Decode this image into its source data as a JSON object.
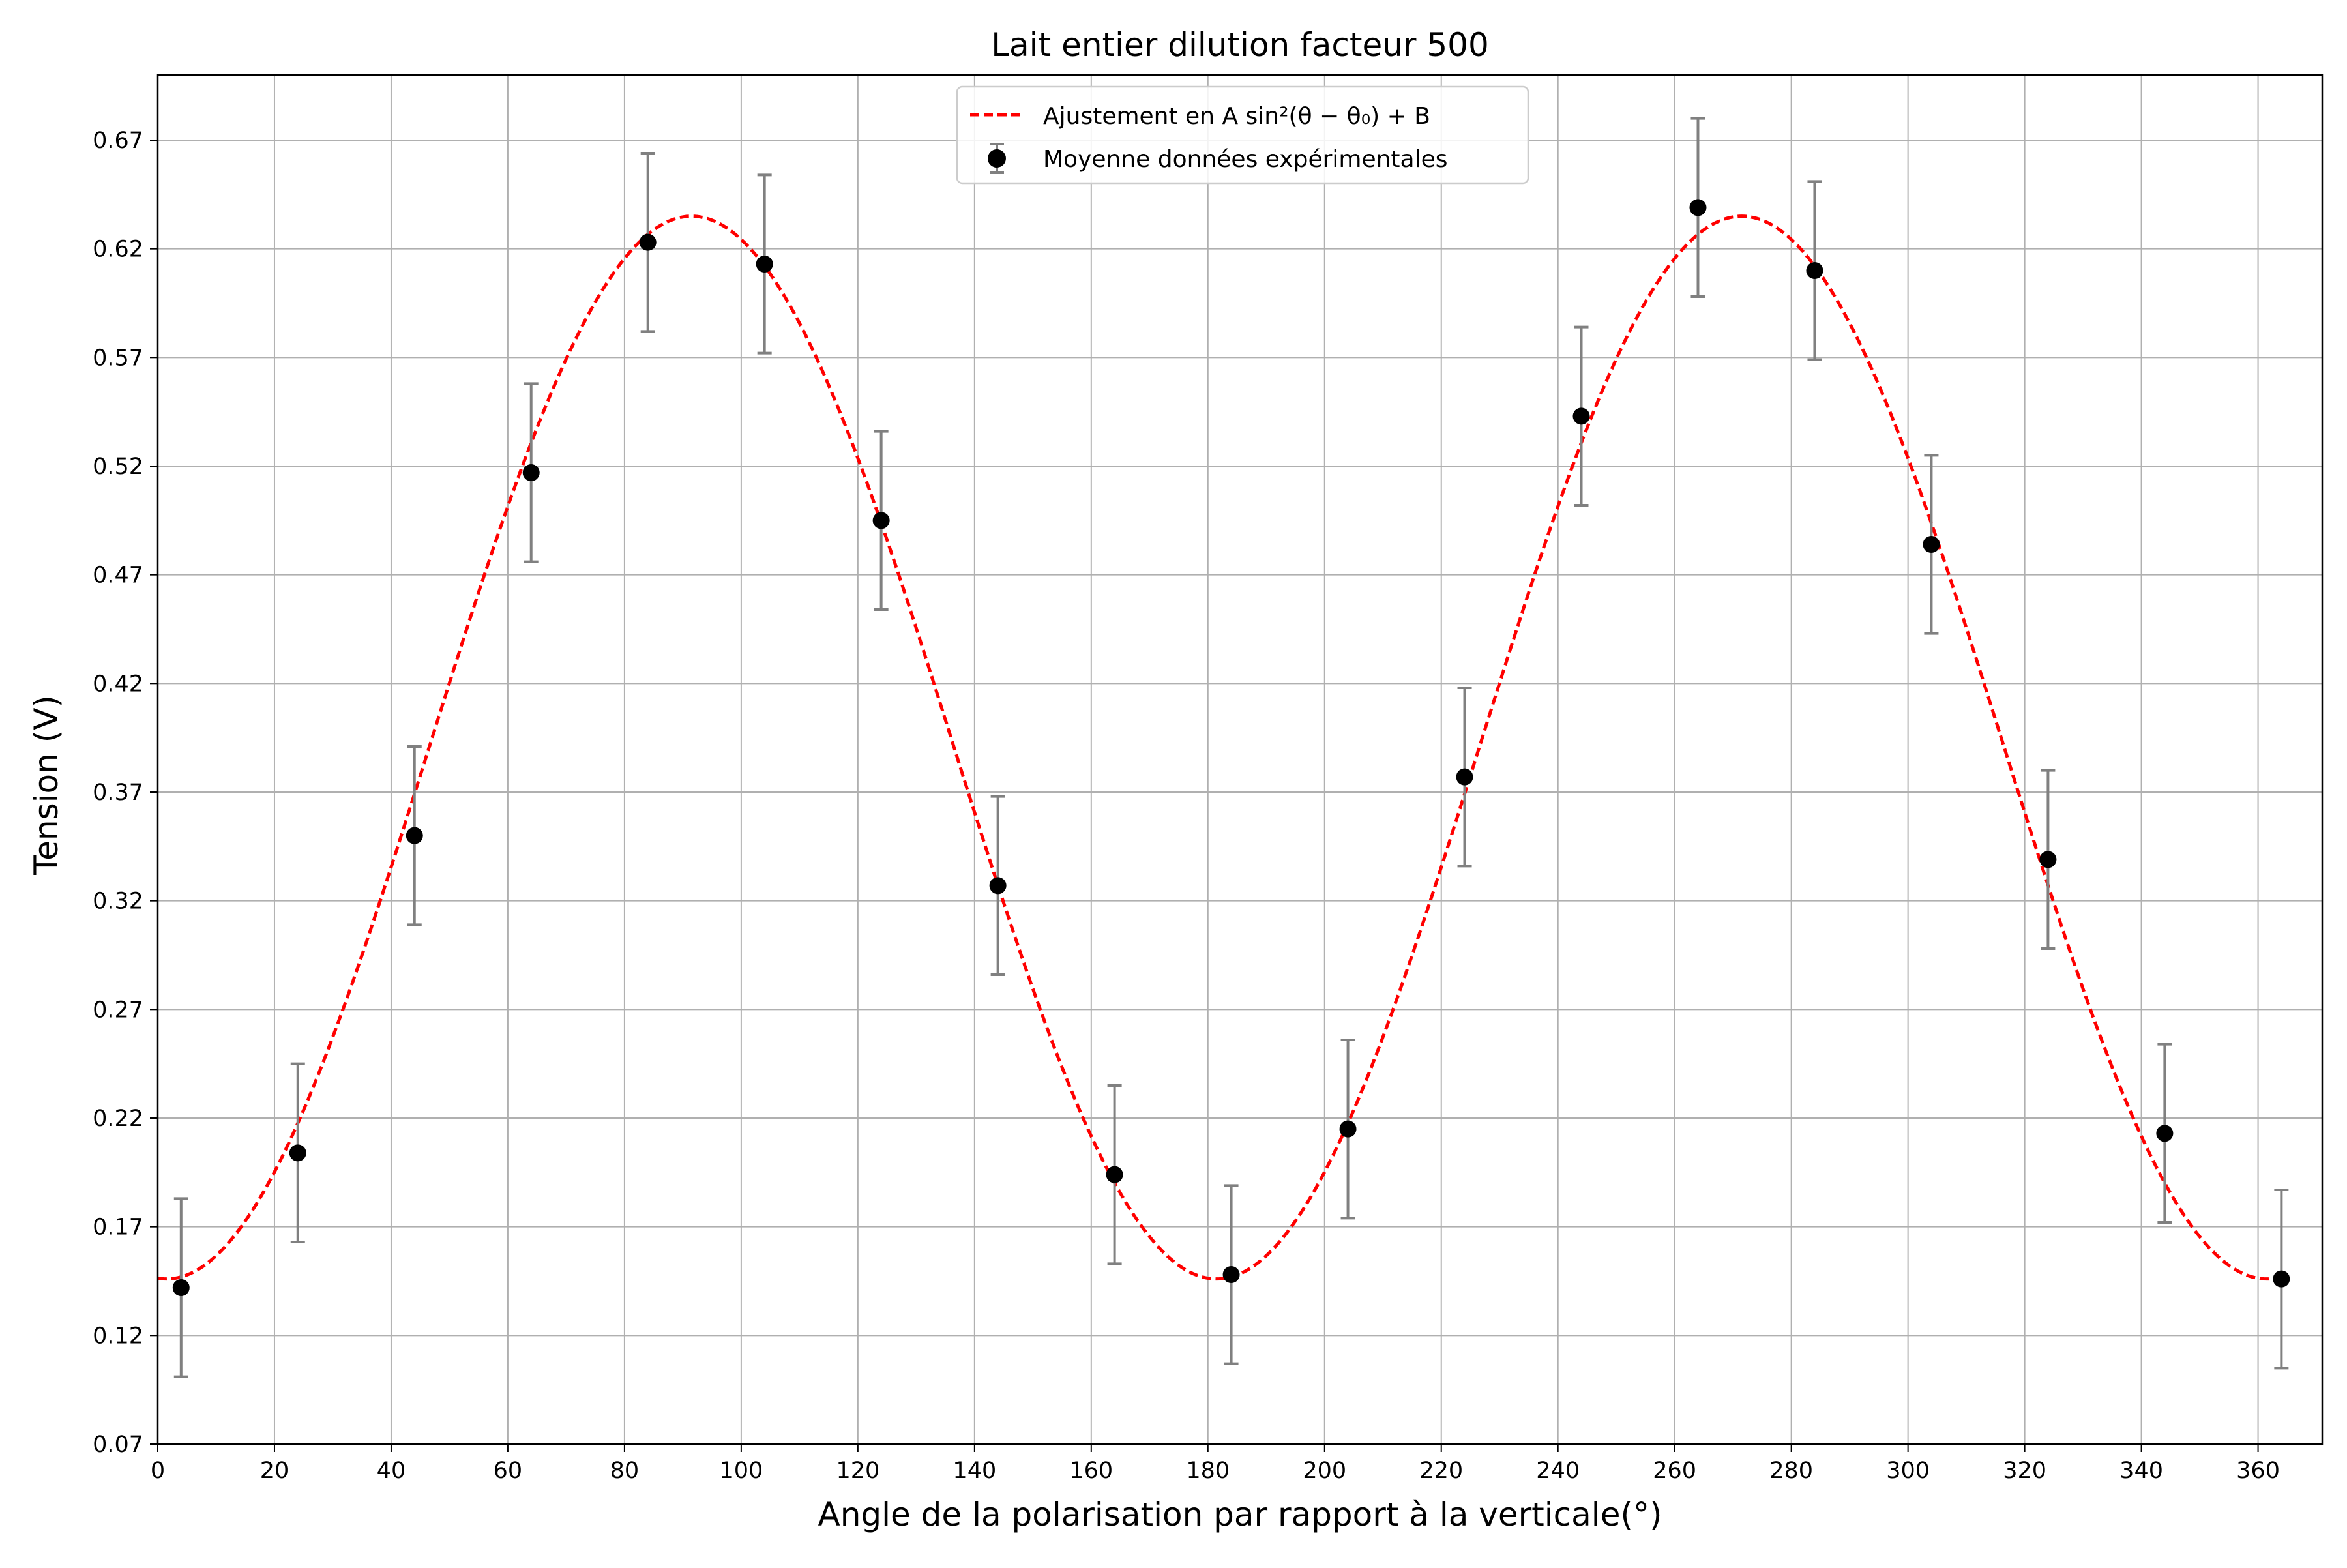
{
  "chart_data": {
    "type": "scatter",
    "title": "Lait entier dilution facteur 500",
    "xlabel": "Angle de la polarisation par rapport à la verticale(°)",
    "ylabel": "Tension (V)",
    "xlim": [
      0,
      371
    ],
    "ylim": [
      0.07,
      0.7
    ],
    "x_ticks": [
      0,
      20,
      40,
      60,
      80,
      100,
      120,
      140,
      160,
      180,
      200,
      220,
      240,
      260,
      280,
      300,
      320,
      340,
      360
    ],
    "y_ticks": [
      0.07,
      0.12,
      0.17,
      0.22,
      0.27,
      0.32,
      0.37,
      0.42,
      0.47,
      0.52,
      0.57,
      0.62,
      0.67
    ],
    "x_tick_labels": [
      "0",
      "20",
      "40",
      "60",
      "80",
      "100",
      "120",
      "140",
      "160",
      "180",
      "200",
      "220",
      "240",
      "260",
      "280",
      "300",
      "320",
      "340",
      "360"
    ],
    "y_tick_labels": [
      "0.07",
      "0.12",
      "0.17",
      "0.22",
      "0.27",
      "0.32",
      "0.37",
      "0.42",
      "0.47",
      "0.52",
      "0.57",
      "0.62",
      "0.67"
    ],
    "grid": true,
    "legend_position": "top-center",
    "series": [
      {
        "name": "Ajustement en A sin²(θ − θ₀) + B",
        "kind": "fit-line",
        "style": "dashed",
        "color": "#ff0000",
        "A": 0.489,
        "B": 0.146,
        "theta0_deg": 1.5
      },
      {
        "name": "Moyenne données expérimentales",
        "kind": "errorbar",
        "marker_color": "#000000",
        "errorbar_color": "#808080",
        "x": [
          4,
          24,
          44,
          64,
          84,
          104,
          124,
          144,
          164,
          184,
          204,
          224,
          244,
          264,
          284,
          304,
          324,
          344,
          364
        ],
        "y": [
          0.142,
          0.204,
          0.35,
          0.517,
          0.623,
          0.613,
          0.495,
          0.327,
          0.194,
          0.148,
          0.215,
          0.377,
          0.543,
          0.639,
          0.61,
          0.484,
          0.339,
          0.213,
          0.146
        ],
        "y_err": [
          0.041,
          0.041,
          0.041,
          0.041,
          0.041,
          0.041,
          0.041,
          0.041,
          0.041,
          0.041,
          0.041,
          0.041,
          0.041,
          0.041,
          0.041,
          0.041,
          0.041,
          0.041,
          0.041
        ]
      }
    ]
  }
}
